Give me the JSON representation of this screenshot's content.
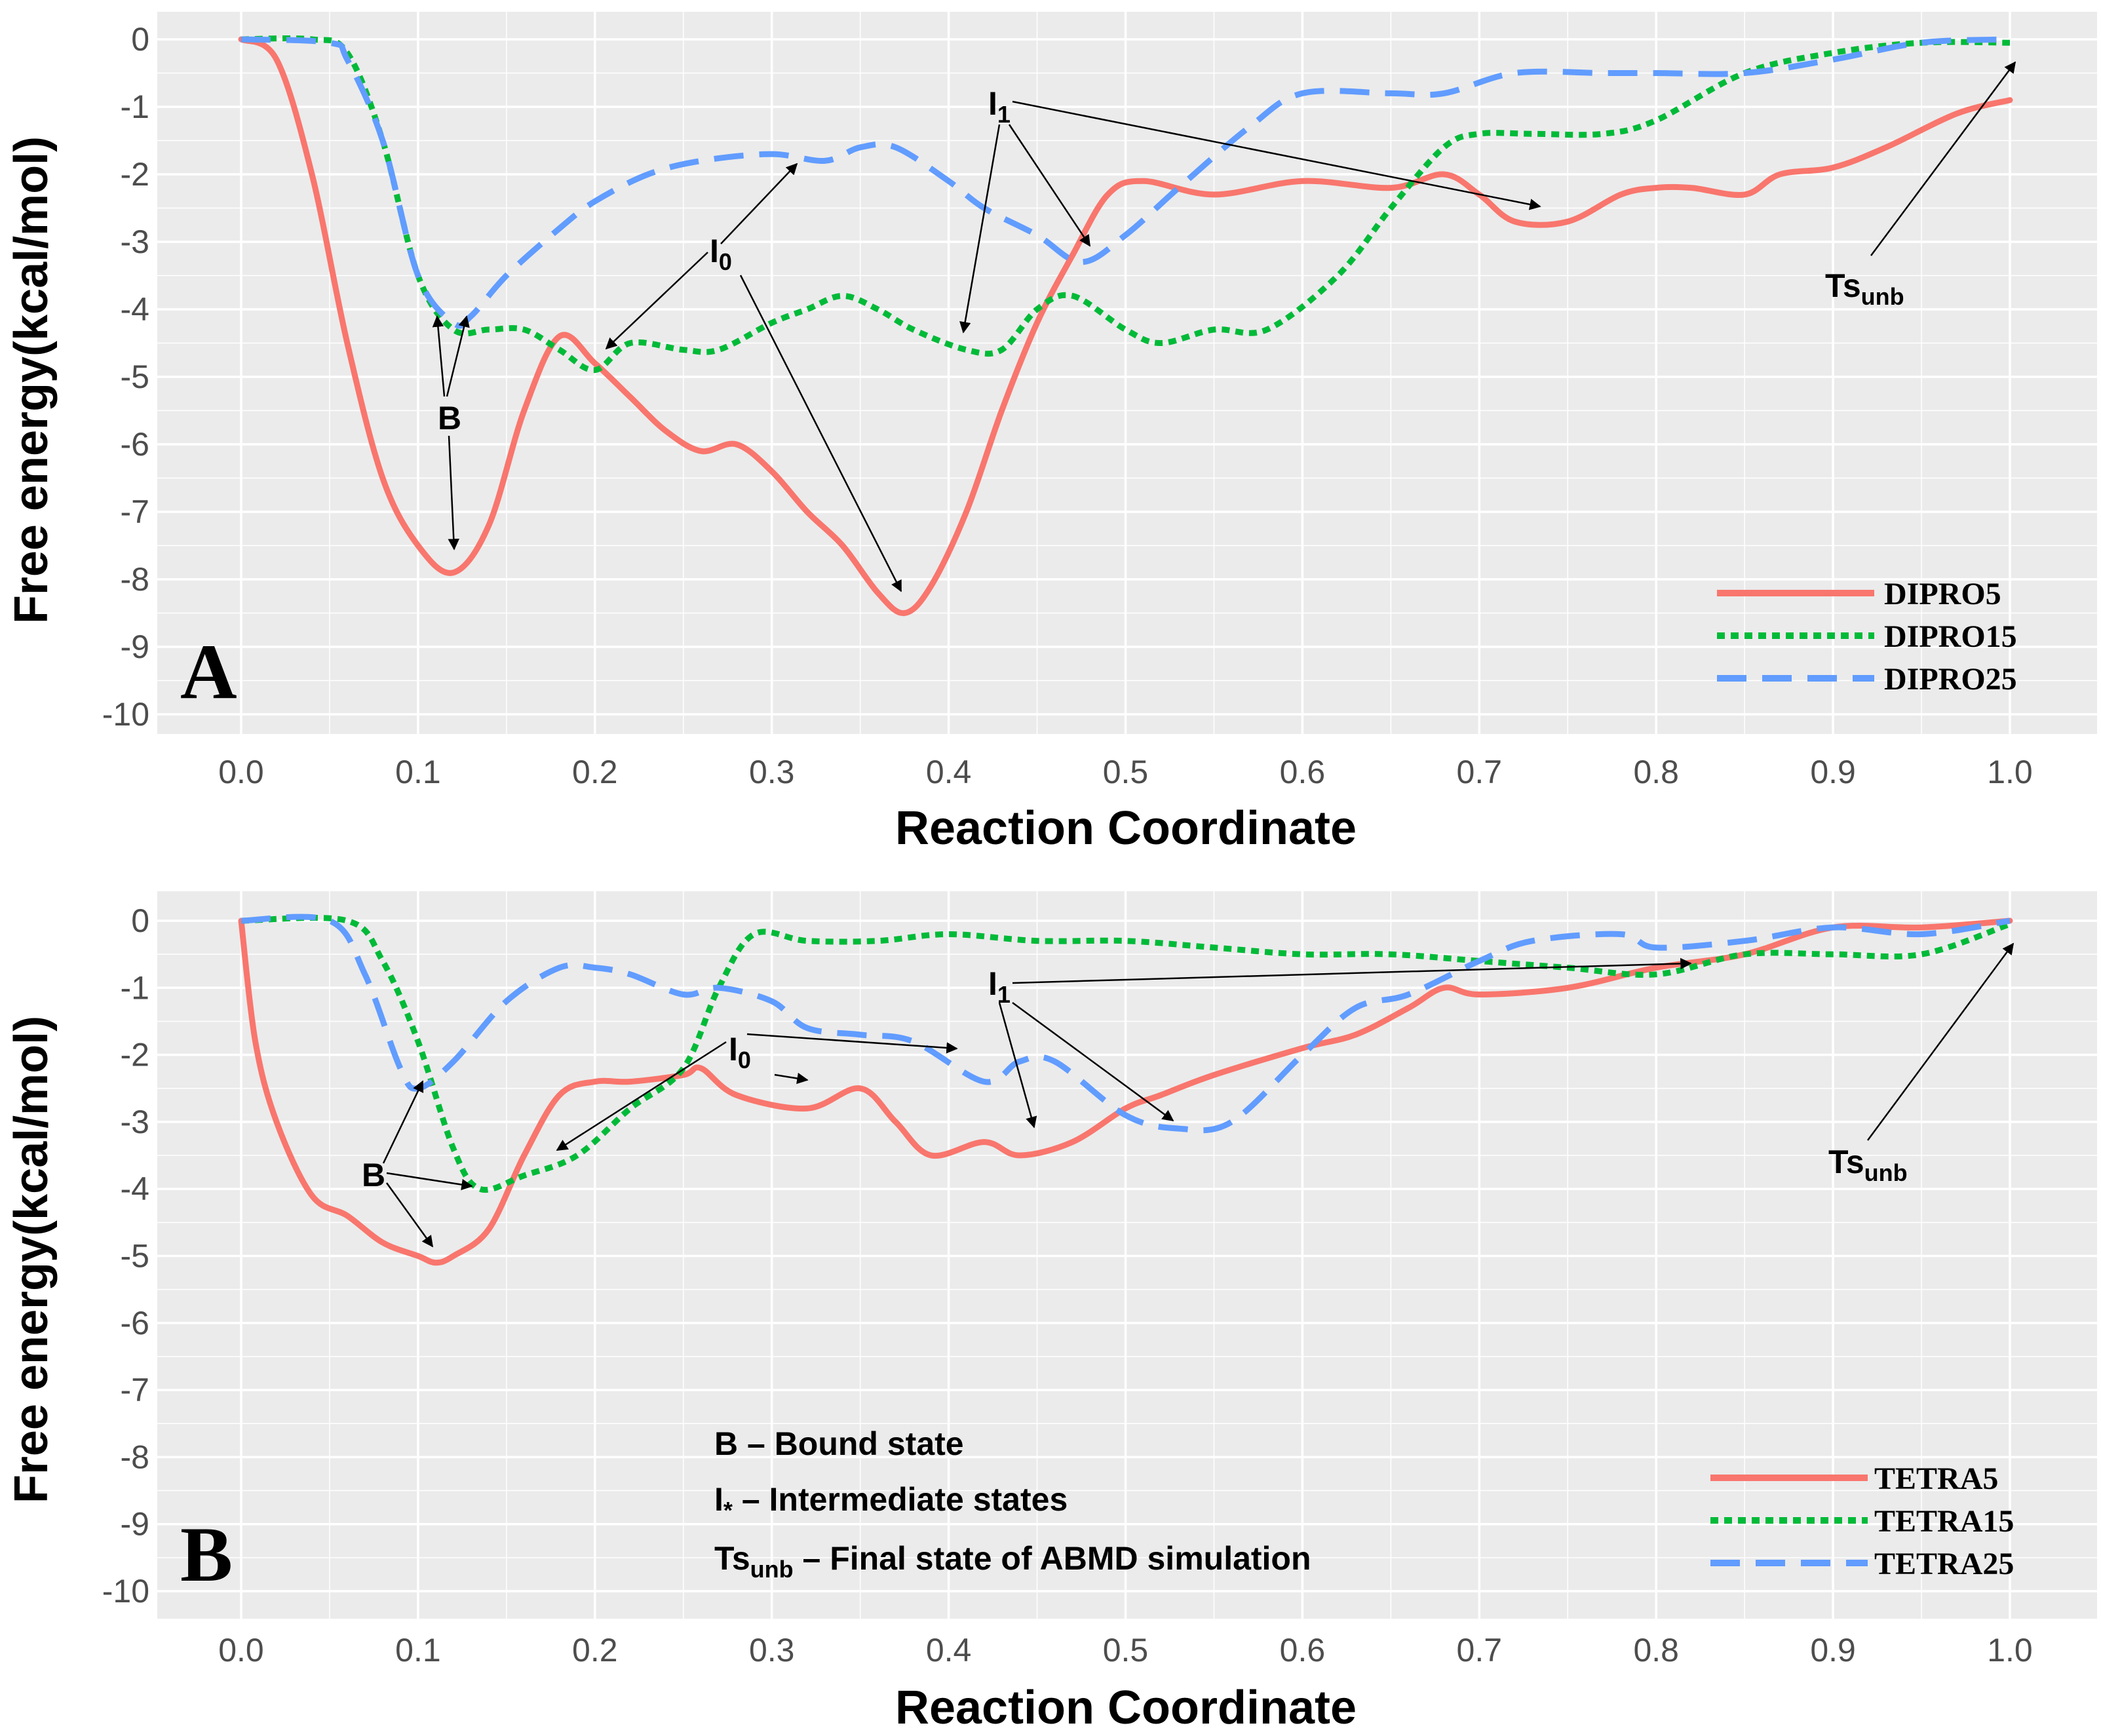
{
  "colors": {
    "panel_bg": "#ebebeb",
    "grid": "#ffffff",
    "series5": "#f8766d",
    "series15": "#00ba38",
    "series25": "#619cff"
  },
  "chart_data": [
    {
      "type": "line",
      "panel": "A",
      "xlabel": "Reaction Coordinate",
      "ylabel": "Free energy(kcal/mol)",
      "xlim": [
        0,
        1
      ],
      "ylim": [
        -10,
        0
      ],
      "xticks": [
        "0.0",
        "0.1",
        "0.2",
        "0.3",
        "0.4",
        "0.5",
        "0.6",
        "0.7",
        "0.8",
        "0.9",
        "1.0"
      ],
      "yticks": [
        "0",
        "-1",
        "-2",
        "-3",
        "-4",
        "-5",
        "-6",
        "-7",
        "-8",
        "-9",
        "-10"
      ],
      "legend_position": "bottom-right",
      "series": [
        {
          "name": "DIPRO5",
          "style": "solid",
          "x": [
            0.0,
            0.02,
            0.04,
            0.06,
            0.08,
            0.1,
            0.12,
            0.14,
            0.16,
            0.18,
            0.2,
            0.22,
            0.24,
            0.26,
            0.28,
            0.3,
            0.32,
            0.34,
            0.36,
            0.375,
            0.39,
            0.41,
            0.43,
            0.45,
            0.47,
            0.49,
            0.51,
            0.55,
            0.6,
            0.65,
            0.68,
            0.7,
            0.72,
            0.75,
            0.78,
            0.8,
            0.82,
            0.85,
            0.87,
            0.9,
            0.93,
            0.97,
            1.0
          ],
          "y": [
            0,
            -0.3,
            -2.0,
            -4.5,
            -6.5,
            -7.5,
            -7.9,
            -7.2,
            -5.5,
            -4.4,
            -4.8,
            -5.3,
            -5.8,
            -6.1,
            -6.0,
            -6.4,
            -7.0,
            -7.5,
            -8.2,
            -8.5,
            -8.1,
            -7.0,
            -5.5,
            -4.2,
            -3.2,
            -2.3,
            -2.1,
            -2.3,
            -2.1,
            -2.2,
            -2.0,
            -2.3,
            -2.7,
            -2.7,
            -2.3,
            -2.2,
            -2.2,
            -2.3,
            -2.0,
            -1.9,
            -1.6,
            -1.1,
            -0.9
          ]
        },
        {
          "name": "DIPRO15",
          "style": "dotted",
          "x": [
            0.0,
            0.04,
            0.06,
            0.08,
            0.1,
            0.12,
            0.14,
            0.16,
            0.18,
            0.2,
            0.22,
            0.25,
            0.27,
            0.3,
            0.32,
            0.34,
            0.36,
            0.38,
            0.41,
            0.43,
            0.45,
            0.47,
            0.5,
            0.52,
            0.55,
            0.58,
            0.62,
            0.65,
            0.68,
            0.7,
            0.73,
            0.77,
            0.8,
            0.85,
            0.9,
            0.95,
            1.0
          ],
          "y": [
            0,
            0,
            -0.2,
            -1.5,
            -3.5,
            -4.3,
            -4.3,
            -4.3,
            -4.6,
            -4.9,
            -4.5,
            -4.6,
            -4.6,
            -4.2,
            -4.0,
            -3.8,
            -4.0,
            -4.3,
            -4.6,
            -4.6,
            -4.0,
            -3.8,
            -4.3,
            -4.5,
            -4.3,
            -4.3,
            -3.5,
            -2.5,
            -1.6,
            -1.4,
            -1.4,
            -1.4,
            -1.2,
            -0.5,
            -0.2,
            -0.05,
            -0.05
          ]
        },
        {
          "name": "DIPRO25",
          "style": "dashed",
          "x": [
            0.0,
            0.05,
            0.06,
            0.08,
            0.1,
            0.12,
            0.13,
            0.15,
            0.18,
            0.2,
            0.23,
            0.26,
            0.3,
            0.33,
            0.35,
            0.37,
            0.4,
            0.42,
            0.45,
            0.475,
            0.5,
            0.53,
            0.57,
            0.6,
            0.65,
            0.68,
            0.72,
            0.77,
            0.8,
            0.85,
            0.9,
            0.95,
            1.0
          ],
          "y": [
            0,
            -0.05,
            -0.3,
            -1.5,
            -3.5,
            -4.2,
            -4.1,
            -3.5,
            -2.8,
            -2.4,
            -2.0,
            -1.8,
            -1.7,
            -1.8,
            -1.6,
            -1.6,
            -2.1,
            -2.5,
            -2.9,
            -3.3,
            -2.9,
            -2.2,
            -1.3,
            -0.8,
            -0.8,
            -0.8,
            -0.5,
            -0.5,
            -0.5,
            -0.5,
            -0.3,
            -0.05,
            0
          ]
        }
      ],
      "annotations": [
        {
          "label": "B"
        },
        {
          "label": "I",
          "subscript": "0"
        },
        {
          "label": "I",
          "subscript": "1"
        },
        {
          "label": "Ts",
          "subscript": "unb"
        }
      ]
    },
    {
      "type": "line",
      "panel": "B",
      "xlabel": "Reaction Coordinate",
      "ylabel": "Free energy(kcal/mol)",
      "xlim": [
        0,
        1
      ],
      "ylim": [
        -10,
        0
      ],
      "xticks": [
        "0.0",
        "0.1",
        "0.2",
        "0.3",
        "0.4",
        "0.5",
        "0.6",
        "0.7",
        "0.8",
        "0.9",
        "1.0"
      ],
      "yticks": [
        "0",
        "-1",
        "-2",
        "-3",
        "-4",
        "-5",
        "-6",
        "-7",
        "-8",
        "-9",
        "-10"
      ],
      "legend_position": "bottom-right",
      "series": [
        {
          "name": "TETRA5",
          "style": "solid",
          "x": [
            0.0,
            0.008,
            0.02,
            0.04,
            0.06,
            0.08,
            0.1,
            0.11,
            0.12,
            0.14,
            0.16,
            0.18,
            0.2,
            0.22,
            0.25,
            0.26,
            0.28,
            0.32,
            0.35,
            0.37,
            0.39,
            0.42,
            0.44,
            0.47,
            0.5,
            0.52,
            0.55,
            0.6,
            0.63,
            0.66,
            0.68,
            0.7,
            0.75,
            0.8,
            0.85,
            0.9,
            0.95,
            1.0
          ],
          "y": [
            0,
            -1.8,
            -3.0,
            -4.1,
            -4.4,
            -4.8,
            -5.0,
            -5.1,
            -5.0,
            -4.6,
            -3.5,
            -2.6,
            -2.4,
            -2.4,
            -2.3,
            -2.2,
            -2.6,
            -2.8,
            -2.5,
            -3.0,
            -3.5,
            -3.3,
            -3.5,
            -3.3,
            -2.8,
            -2.6,
            -2.3,
            -1.9,
            -1.7,
            -1.3,
            -1.0,
            -1.1,
            -1.0,
            -0.7,
            -0.5,
            -0.1,
            -0.1,
            0
          ]
        },
        {
          "name": "TETRA15",
          "style": "dotted",
          "x": [
            0.0,
            0.06,
            0.08,
            0.1,
            0.12,
            0.135,
            0.16,
            0.19,
            0.22,
            0.25,
            0.27,
            0.29,
            0.32,
            0.36,
            0.4,
            0.45,
            0.5,
            0.55,
            0.6,
            0.65,
            0.7,
            0.75,
            0.8,
            0.85,
            0.9,
            0.95,
            1.0
          ],
          "y": [
            0,
            0,
            -0.6,
            -1.8,
            -3.4,
            -4.0,
            -3.8,
            -3.5,
            -2.8,
            -2.2,
            -1.0,
            -0.2,
            -0.3,
            -0.3,
            -0.2,
            -0.3,
            -0.3,
            -0.4,
            -0.5,
            -0.5,
            -0.6,
            -0.7,
            -0.8,
            -0.5,
            -0.5,
            -0.5,
            -0.05
          ]
        },
        {
          "name": "TETRA25",
          "style": "dashed",
          "x": [
            0.0,
            0.05,
            0.07,
            0.09,
            0.1,
            0.12,
            0.15,
            0.18,
            0.2,
            0.22,
            0.25,
            0.27,
            0.3,
            0.32,
            0.35,
            0.38,
            0.42,
            0.44,
            0.46,
            0.5,
            0.53,
            0.56,
            0.6,
            0.63,
            0.66,
            0.7,
            0.73,
            0.78,
            0.8,
            0.85,
            0.9,
            0.95,
            1.0
          ],
          "y": [
            0,
            0,
            -0.8,
            -2.2,
            -2.5,
            -2.1,
            -1.2,
            -0.7,
            -0.7,
            -0.8,
            -1.1,
            -1.0,
            -1.2,
            -1.6,
            -1.7,
            -1.8,
            -2.4,
            -2.1,
            -2.1,
            -2.9,
            -3.1,
            -3.0,
            -2.0,
            -1.3,
            -1.1,
            -0.6,
            -0.3,
            -0.2,
            -0.4,
            -0.3,
            -0.1,
            -0.2,
            0
          ]
        }
      ],
      "annotations": [
        {
          "label": "B"
        },
        {
          "label": "I",
          "subscript": "0"
        },
        {
          "label": "I",
          "subscript": "1"
        },
        {
          "label": "Ts",
          "subscript": "unb"
        }
      ],
      "notes": [
        {
          "label": "B",
          "subscript": "",
          "text": " – Bound state"
        },
        {
          "label": "I",
          "subscript": "*",
          "text": " – Intermediate states"
        },
        {
          "label": "Ts",
          "subscript": "unb",
          "text": " – Final state of ABMD simulation"
        }
      ]
    }
  ]
}
